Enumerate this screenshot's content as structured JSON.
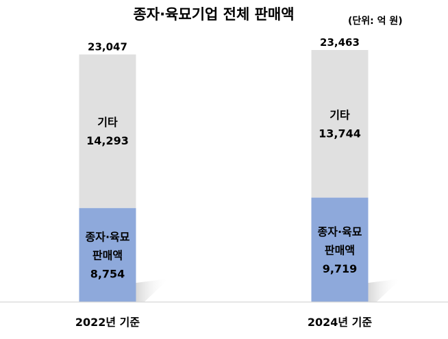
{
  "chart_data": {
    "type": "bar",
    "stacked": true,
    "title": "종자·육묘기업 전체 판매액",
    "unit": "(단위: 억 원)",
    "categories": [
      "2022년 기준",
      "2024년 기준"
    ],
    "totals": [
      "23,047",
      "23,463"
    ],
    "series": [
      {
        "name": "종자·육묘 판매액",
        "label_lines": [
          "종자·육묘",
          "판매액"
        ],
        "values": [
          8754,
          9719
        ],
        "value_labels": [
          "8,754",
          "9,719"
        ],
        "color": "#8EA9DB"
      },
      {
        "name": "기타",
        "label_lines": [
          "기타"
        ],
        "values": [
          14293,
          13744
        ],
        "value_labels": [
          "14,293",
          "13,744"
        ],
        "color": "#E0E0E0"
      }
    ],
    "ylim": [
      0,
      23463
    ],
    "grid": false,
    "legend": "none"
  }
}
